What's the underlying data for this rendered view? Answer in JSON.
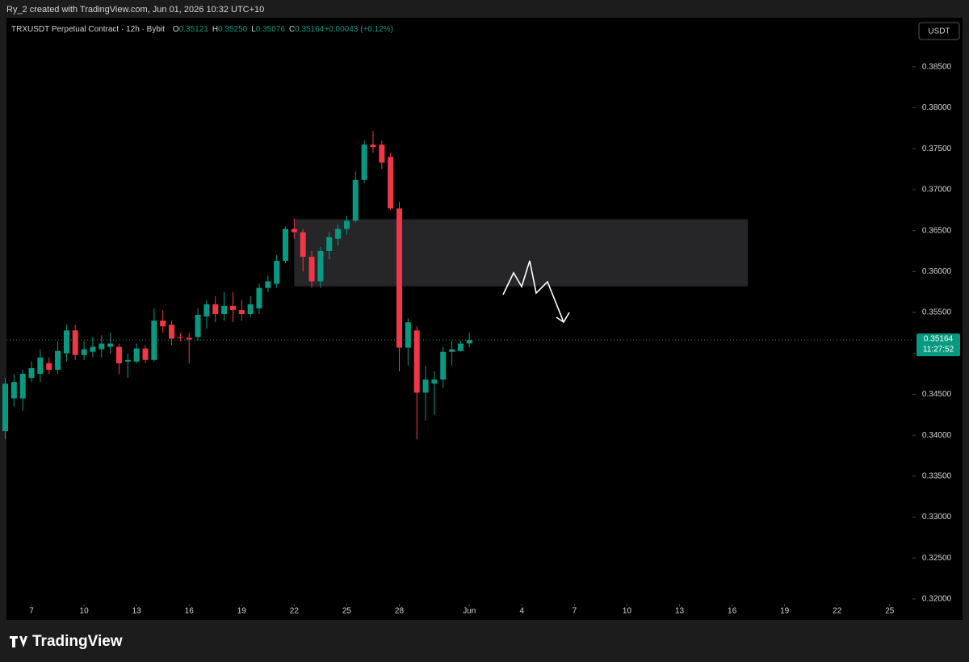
{
  "header": "Ry_2 created with TradingView.com, Jun 01, 2026 10:32 UTC+10",
  "footer_brand": "TradingView",
  "chart_data": {
    "type": "candlestick",
    "title": "TRXUSDT Perpetual Contract · 12h · Bybit",
    "ohlc_legend": [
      {
        "label": "O",
        "value": "0.35121"
      },
      {
        "label": "H",
        "value": "0.35250"
      },
      {
        "label": "L",
        "value": "0.35076"
      },
      {
        "label": "C",
        "value": "0.35164"
      },
      {
        "label": "",
        "value": "+0.00043 (+0.12%)"
      }
    ],
    "currency": "USDT",
    "last_price_label": "0.35164",
    "countdown": "11:27:52",
    "up_color": "#089981",
    "down_color": "#f23645",
    "x": [
      5.5,
      6,
      6.5,
      7,
      7.5,
      8,
      8.5,
      9,
      9.5,
      10,
      10.5,
      11,
      11.5,
      12,
      12.5,
      13,
      13.5,
      14,
      14.5,
      15,
      15.5,
      16,
      16.5,
      17,
      17.5,
      18,
      18.5,
      19,
      19.5,
      20,
      20.5,
      21,
      21.5,
      22,
      22.5,
      23,
      23.5,
      24,
      24.5,
      25,
      25.5,
      26,
      26.5,
      27,
      27.5,
      28,
      28.5,
      29,
      29.5,
      30,
      30.5,
      31,
      31.5,
      32
    ],
    "open": [
      0.3405,
      0.3445,
      0.3445,
      0.347,
      0.3475,
      0.3488,
      0.348,
      0.35,
      0.3528,
      0.3498,
      0.3502,
      0.3505,
      0.3508,
      0.3508,
      0.349,
      0.349,
      0.3506,
      0.3492,
      0.354,
      0.3535,
      0.352,
      0.3519,
      0.352,
      0.3545,
      0.356,
      0.3548,
      0.3558,
      0.3553,
      0.3548,
      0.3555,
      0.358,
      0.3585,
      0.3613,
      0.3652,
      0.3648,
      0.3618,
      0.3588,
      0.3625,
      0.364,
      0.3652,
      0.3662,
      0.3712,
      0.3755,
      0.3755,
      0.374,
      0.3677,
      0.3507,
      0.3528,
      0.3452,
      0.3463,
      0.3468,
      0.3502,
      0.3503,
      0.35121
    ],
    "high": [
      0.347,
      0.3475,
      0.348,
      0.349,
      0.3505,
      0.3495,
      0.3515,
      0.3535,
      0.3535,
      0.3515,
      0.352,
      0.3522,
      0.3525,
      0.3512,
      0.35,
      0.3512,
      0.351,
      0.3555,
      0.3553,
      0.354,
      0.3525,
      0.3525,
      0.3555,
      0.3565,
      0.357,
      0.3575,
      0.3575,
      0.3565,
      0.357,
      0.3585,
      0.3595,
      0.362,
      0.3655,
      0.3665,
      0.3652,
      0.3625,
      0.363,
      0.3648,
      0.3658,
      0.3668,
      0.3722,
      0.376,
      0.3772,
      0.376,
      0.3745,
      0.3685,
      0.3543,
      0.3533,
      0.3485,
      0.3478,
      0.3508,
      0.3515,
      0.3515,
      0.3525
    ],
    "low": [
      0.3395,
      0.3435,
      0.343,
      0.3465,
      0.3465,
      0.3475,
      0.3475,
      0.349,
      0.3492,
      0.3492,
      0.3495,
      0.3495,
      0.35,
      0.3475,
      0.347,
      0.3488,
      0.3488,
      0.349,
      0.3525,
      0.351,
      0.3515,
      0.3488,
      0.3515,
      0.353,
      0.3538,
      0.354,
      0.3538,
      0.354,
      0.3545,
      0.3548,
      0.3575,
      0.358,
      0.361,
      0.364,
      0.36,
      0.358,
      0.358,
      0.3615,
      0.3632,
      0.3645,
      0.366,
      0.3708,
      0.3745,
      0.3725,
      0.3675,
      0.3478,
      0.3485,
      0.3395,
      0.3418,
      0.3425,
      0.3458,
      0.3485,
      0.3502,
      0.35076
    ],
    "close": [
      0.3463,
      0.3465,
      0.3475,
      0.3482,
      0.3495,
      0.348,
      0.3503,
      0.3528,
      0.3498,
      0.3505,
      0.3508,
      0.3512,
      0.3512,
      0.3488,
      0.3492,
      0.3506,
      0.3492,
      0.354,
      0.3533,
      0.3518,
      0.3519,
      0.3517,
      0.3547,
      0.356,
      0.3548,
      0.3558,
      0.3553,
      0.3548,
      0.356,
      0.358,
      0.3588,
      0.3613,
      0.3652,
      0.3648,
      0.3618,
      0.3588,
      0.3625,
      0.3642,
      0.3652,
      0.3662,
      0.3712,
      0.3755,
      0.3752,
      0.3733,
      0.3677,
      0.3507,
      0.3538,
      0.3452,
      0.3468,
      0.3468,
      0.3502,
      0.3505,
      0.3512,
      0.35164
    ],
    "zone": {
      "x": [
        22,
        47.9
      ],
      "y": [
        0.3582,
        0.3664
      ]
    },
    "xlim": [
      5.57,
      57.3
    ],
    "xticks": [
      7,
      10,
      13,
      16,
      19,
      22,
      25,
      28,
      {
        "value": 32,
        "label": "Jun"
      },
      {
        "value": 35,
        "label": "4"
      },
      {
        "value": 38,
        "label": "7"
      },
      {
        "value": 41,
        "label": "10"
      },
      {
        "value": 44,
        "label": "13"
      },
      {
        "value": 47,
        "label": "16"
      },
      {
        "value": 50,
        "label": "19"
      },
      {
        "value": 53,
        "label": "22"
      },
      {
        "value": 56,
        "label": "25"
      }
    ],
    "ylim": [
      0.3194,
      0.391
    ],
    "yticks": [
      {
        "value": 0.32,
        "label": "0.32000"
      },
      {
        "value": 0.325,
        "label": "0.32500"
      },
      {
        "value": 0.33,
        "label": "0.33000"
      },
      {
        "value": 0.335,
        "label": "0.33500"
      },
      {
        "value": 0.34,
        "label": "0.34000"
      },
      {
        "value": 0.345,
        "label": "0.34500"
      },
      {
        "value": 0.35,
        "label": "0.35000"
      },
      {
        "value": 0.355,
        "label": "0.35500"
      },
      {
        "value": 0.36,
        "label": "0.36000"
      },
      {
        "value": 0.365,
        "label": "0.36500"
      },
      {
        "value": 0.37,
        "label": "0.37000"
      },
      {
        "value": 0.375,
        "label": "0.37500"
      },
      {
        "value": 0.38,
        "label": "0.38000"
      },
      {
        "value": 0.385,
        "label": "0.38500"
      }
    ]
  }
}
